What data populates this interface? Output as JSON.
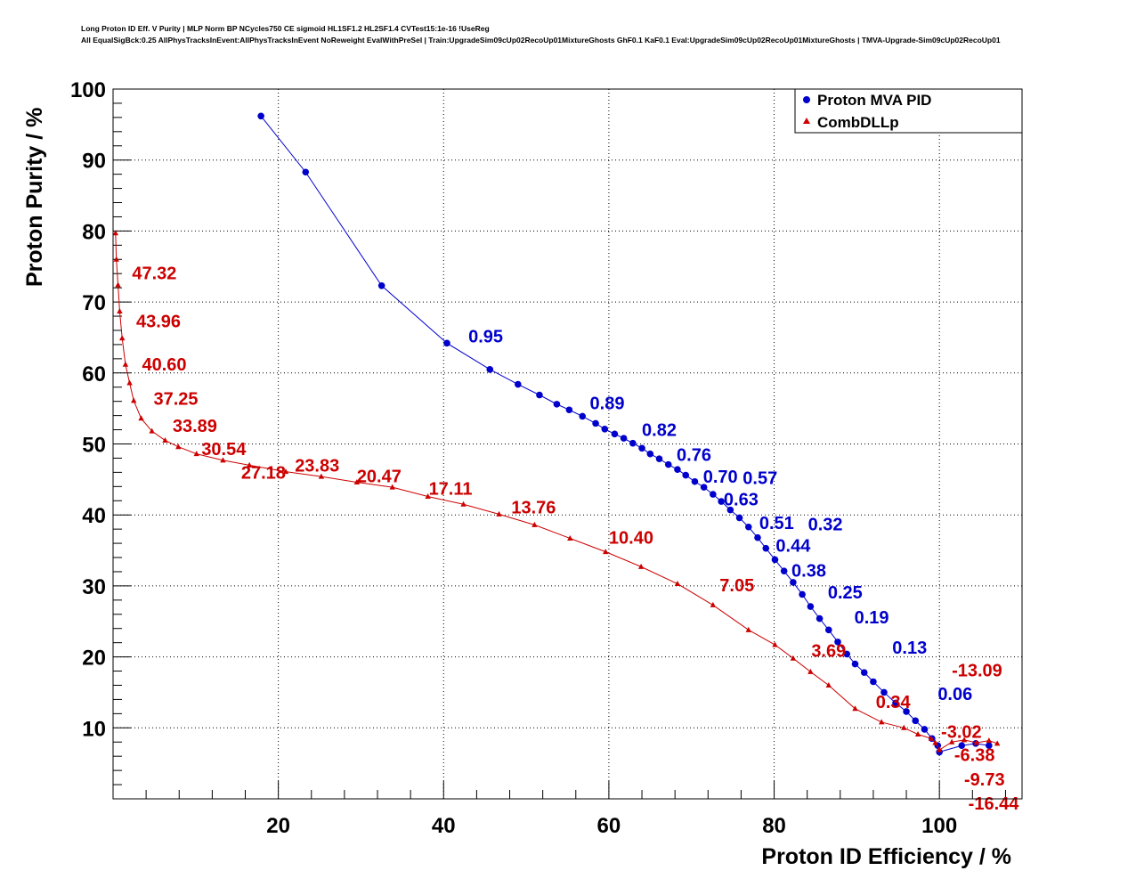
{
  "chart_data": {
    "type": "line",
    "title_line1": "Long Proton ID Eff. V Purity | MLP Norm BP NCycles750 CE sigmoid HL1SF1.2 HL2SF1.4 CVTest15:1e-16 !UseReg",
    "title_line2": "All EqualSigBck:0.25 AllPhysTracksInEvent:AllPhysTracksInEvent NoReweight EvalWithPreSel | Train:UpgradeSim09cUp02RecoUp01MixtureGhosts GhF0.1 KaF0.1 Eval:UpgradeSim09cUp02RecoUp01MixtureGhosts | TMVA-Upgrade-Sim09cUp02RecoUp01",
    "xlabel": "Proton ID Efficiency / %",
    "ylabel": "Proton Purity / %",
    "xlim": [
      0,
      110
    ],
    "ylim": [
      0,
      100
    ],
    "xticks": [
      20,
      40,
      60,
      80,
      100
    ],
    "yticks": [
      10,
      20,
      30,
      40,
      50,
      60,
      70,
      80,
      90,
      100
    ],
    "grid": true,
    "legend_placement": "top-right",
    "series": [
      {
        "name": "Proton MVA PID",
        "color": "#0000cc",
        "marker": "circle",
        "points": [
          [
            17.9,
            96.2
          ],
          [
            23.3,
            88.3
          ],
          [
            32.5,
            72.3
          ],
          [
            40.4,
            64.2
          ],
          [
            45.6,
            60.5
          ],
          [
            49.0,
            58.4
          ],
          [
            51.6,
            56.9
          ],
          [
            53.7,
            55.6
          ],
          [
            55.2,
            54.8
          ],
          [
            56.8,
            53.9
          ],
          [
            58.4,
            52.9
          ],
          [
            59.5,
            52.1
          ],
          [
            60.7,
            51.4
          ],
          [
            61.8,
            50.8
          ],
          [
            62.9,
            50.1
          ],
          [
            64.0,
            49.4
          ],
          [
            65.0,
            48.6
          ],
          [
            66.1,
            47.9
          ],
          [
            67.2,
            47.1
          ],
          [
            68.3,
            46.4
          ],
          [
            69.3,
            45.6
          ],
          [
            70.4,
            44.7
          ],
          [
            71.5,
            43.9
          ],
          [
            72.6,
            42.9
          ],
          [
            73.6,
            41.9
          ],
          [
            74.7,
            40.7
          ],
          [
            75.8,
            39.6
          ],
          [
            76.9,
            38.3
          ],
          [
            78.0,
            36.8
          ],
          [
            79.0,
            35.3
          ],
          [
            80.1,
            33.7
          ],
          [
            81.2,
            32.1
          ],
          [
            82.3,
            30.5
          ],
          [
            83.4,
            28.8
          ],
          [
            84.4,
            27.1
          ],
          [
            85.5,
            25.4
          ],
          [
            86.6,
            23.8
          ],
          [
            87.7,
            22.1
          ],
          [
            88.8,
            20.4
          ],
          [
            89.8,
            19.0
          ],
          [
            90.9,
            17.8
          ],
          [
            92.0,
            16.5
          ],
          [
            93.3,
            15.0
          ],
          [
            94.7,
            13.5
          ],
          [
            96.0,
            12.3
          ],
          [
            97.1,
            11.0
          ],
          [
            98.2,
            9.8
          ],
          [
            99.1,
            8.5
          ],
          [
            99.8,
            7.5
          ],
          [
            100.0,
            6.6
          ],
          [
            102.7,
            7.5
          ],
          [
            104.4,
            7.8
          ],
          [
            106.0,
            7.5
          ]
        ],
        "labels": [
          {
            "text": "0.95",
            "x": 43.0,
            "y": 65.2
          },
          {
            "text": "0.89",
            "x": 57.7,
            "y": 55.8
          },
          {
            "text": "0.82",
            "x": 64.0,
            "y": 52.0
          },
          {
            "text": "0.76",
            "x": 68.2,
            "y": 49.0
          },
          {
            "text": "0.70",
            "x": 71.4,
            "y": 46.9
          },
          {
            "text": "0.63",
            "x": 73.9,
            "y": 44.7
          },
          {
            "text": "0.57",
            "x": 76.2,
            "y": 42.7
          },
          {
            "text": "0.51",
            "x": 78.2,
            "y": 40.9
          },
          {
            "text": "0.44",
            "x": 80.2,
            "y": 38.7
          },
          {
            "text": "0.38",
            "x": 82.1,
            "y": 36.7
          },
          {
            "text": "0.32",
            "x": 84.1,
            "y": 34.2
          },
          {
            "text": "0.25",
            "x": 86.5,
            "y": 31.1
          },
          {
            "text": "0.19",
            "x": 89.7,
            "y": 27.1
          },
          {
            "text": "0.13",
            "x": 94.3,
            "y": 21.3
          },
          {
            "text": "0.06",
            "x": 99.8,
            "y": 14.8
          }
        ]
      },
      {
        "name": "CombDLLp",
        "color": "#cc0000",
        "marker": "triangle",
        "points": [
          [
            0.3,
            79.7
          ],
          [
            0.4,
            76.0
          ],
          [
            0.6,
            72.4
          ],
          [
            0.8,
            68.7
          ],
          [
            1.1,
            64.9
          ],
          [
            1.5,
            61.2
          ],
          [
            2.0,
            58.6
          ],
          [
            2.5,
            56.1
          ],
          [
            3.4,
            53.6
          ],
          [
            4.7,
            51.8
          ],
          [
            6.3,
            50.5
          ],
          [
            7.9,
            49.6
          ],
          [
            10.1,
            48.6
          ],
          [
            13.3,
            47.7
          ],
          [
            16.5,
            47.0
          ],
          [
            20.9,
            46.1
          ],
          [
            25.2,
            45.4
          ],
          [
            29.5,
            44.6
          ],
          [
            33.8,
            43.9
          ],
          [
            38.1,
            42.6
          ],
          [
            42.4,
            41.5
          ],
          [
            46.7,
            40.1
          ],
          [
            51.0,
            38.6
          ],
          [
            55.3,
            36.7
          ],
          [
            59.6,
            34.8
          ],
          [
            63.9,
            32.7
          ],
          [
            68.3,
            30.3
          ],
          [
            72.6,
            27.3
          ],
          [
            76.9,
            23.8
          ],
          [
            80.1,
            21.7
          ],
          [
            82.3,
            19.8
          ],
          [
            84.4,
            17.9
          ],
          [
            86.6,
            16.0
          ],
          [
            89.8,
            12.7
          ],
          [
            93.0,
            10.8
          ],
          [
            95.7,
            10.0
          ],
          [
            97.4,
            9.1
          ],
          [
            99.0,
            8.5
          ],
          [
            99.5,
            7.9
          ],
          [
            100.0,
            6.9
          ],
          [
            101.5,
            8.0
          ],
          [
            103.0,
            8.3
          ],
          [
            104.5,
            7.9
          ],
          [
            106.0,
            8.2
          ],
          [
            107.0,
            7.8
          ]
        ],
        "labels": [
          {
            "text": "47.32",
            "x": 2.3,
            "y": 74.1
          },
          {
            "text": "43.96",
            "x": 2.8,
            "y": 67.3
          },
          {
            "text": "40.60",
            "x": 3.5,
            "y": 61.2
          },
          {
            "text": "37.25",
            "x": 4.9,
            "y": 56.4
          },
          {
            "text": "33.89",
            "x": 7.2,
            "y": 52.6
          },
          {
            "text": "30.54",
            "x": 10.7,
            "y": 50.3
          },
          {
            "text": "27.18",
            "x": 15.5,
            "y": 48.5
          },
          {
            "text": "23.83",
            "x": 22.0,
            "y": 47.0
          },
          {
            "text": "20.47",
            "x": 29.5,
            "y": 45.5
          },
          {
            "text": "17.11",
            "x": 38.2,
            "y": 43.7
          },
          {
            "text": "13.76",
            "x": 48.2,
            "y": 41.1
          },
          {
            "text": "10.40",
            "x": 60.0,
            "y": 36.8
          },
          {
            "text": "7.05",
            "x": 73.4,
            "y": 30.1
          },
          {
            "text": "3.69",
            "x": 84.5,
            "y": 20.9
          },
          {
            "text": "0.34",
            "x": 92.3,
            "y": 13.7
          },
          {
            "text": "-3.02",
            "x": 100.2,
            "y": 9.5
          },
          {
            "text": "-6.38",
            "x": 101.8,
            "y": 8.7
          },
          {
            "text": "-9.73",
            "x": 103.0,
            "y": 8.3
          },
          {
            "text": "-13.09",
            "x": 101.5,
            "y": 7.6
          },
          {
            "text": "-16.44",
            "x": 103.5,
            "y": 7.4
          }
        ]
      }
    ]
  }
}
